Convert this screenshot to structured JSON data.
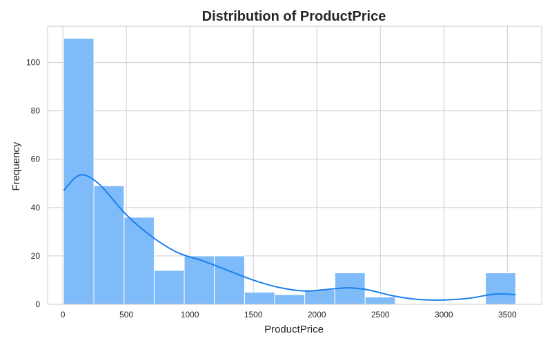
{
  "chart_data": {
    "type": "bar",
    "title": "Distribution of ProductPrice",
    "xlabel": "ProductPrice",
    "ylabel": "Frequency",
    "xlim": [
      -120,
      3770
    ],
    "ylim": [
      0,
      115
    ],
    "xticks": [
      0,
      500,
      1000,
      1500,
      2000,
      2500,
      3000,
      3500
    ],
    "yticks": [
      0,
      20,
      40,
      60,
      80,
      100
    ],
    "grid": true,
    "legend": "none",
    "bar_color": "#7fbaf9",
    "bar_edge_color": "#ffffff",
    "kde_color": "#1a7fee",
    "bin_edges": [
      7,
      244,
      482,
      719,
      956,
      1193,
      1431,
      1668,
      1905,
      2142,
      2380,
      2617,
      2854,
      3091,
      3328,
      3566
    ],
    "values": [
      110,
      49,
      36,
      14,
      20,
      20,
      5,
      4,
      6,
      13,
      3,
      0,
      0,
      0,
      13
    ],
    "kde_points": [
      [
        7,
        47
      ],
      [
        100,
        52.5
      ],
      [
        180,
        53.3
      ],
      [
        300,
        49
      ],
      [
        500,
        37
      ],
      [
        700,
        28
      ],
      [
        900,
        21.5
      ],
      [
        1100,
        18
      ],
      [
        1300,
        14
      ],
      [
        1500,
        10
      ],
      [
        1700,
        7
      ],
      [
        1900,
        5.5
      ],
      [
        2050,
        6
      ],
      [
        2250,
        6.8
      ],
      [
        2400,
        6
      ],
      [
        2600,
        3.5
      ],
      [
        2800,
        2
      ],
      [
        3000,
        1.8
      ],
      [
        3200,
        2.5
      ],
      [
        3400,
        4.2
      ],
      [
        3566,
        4
      ]
    ]
  }
}
